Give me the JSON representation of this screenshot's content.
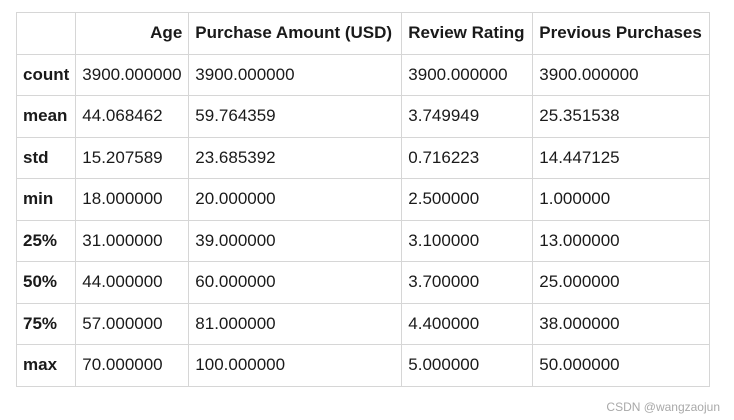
{
  "table": {
    "header": {
      "corner": "",
      "columns": [
        "Age",
        "Purchase Amount (USD)",
        "Review Rating",
        "Previous Purchases"
      ]
    },
    "rows": [
      {
        "label": "count",
        "values": [
          "3900.000000",
          "3900.000000",
          "3900.000000",
          "3900.000000"
        ]
      },
      {
        "label": "mean",
        "values": [
          "44.068462",
          "59.764359",
          "3.749949",
          "25.351538"
        ]
      },
      {
        "label": "std",
        "values": [
          "15.207589",
          "23.685392",
          "0.716223",
          "14.447125"
        ]
      },
      {
        "label": "min",
        "values": [
          "18.000000",
          "20.000000",
          "2.500000",
          "1.000000"
        ]
      },
      {
        "label": "25%",
        "values": [
          "31.000000",
          "39.000000",
          "3.100000",
          "13.000000"
        ]
      },
      {
        "label": "50%",
        "values": [
          "44.000000",
          "60.000000",
          "3.700000",
          "25.000000"
        ]
      },
      {
        "label": "75%",
        "values": [
          "57.000000",
          "81.000000",
          "4.400000",
          "38.000000"
        ]
      },
      {
        "label": "max",
        "values": [
          "70.000000",
          "100.000000",
          "5.000000",
          "50.000000"
        ]
      }
    ]
  },
  "watermark": "CSDN @wangzaojun"
}
